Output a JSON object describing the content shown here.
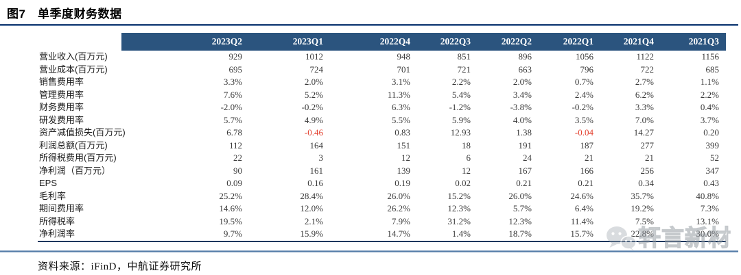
{
  "figure": {
    "title": "图7　单季度财务数据",
    "source": "资料来源：iFinD，中航证券研究所"
  },
  "watermark": {
    "icon": "wechat-icon",
    "text": "轩言新材"
  },
  "colors": {
    "header_bg": "#2B547E",
    "rule_dark": "#274A7C",
    "rule_light": "#43709F",
    "border_dark": "#17365D",
    "negative_red": "#E3402E"
  },
  "chart_data": {
    "type": "table",
    "title": "图7 单季度财务数据",
    "columns": [
      "",
      "2023Q2",
      "2023Q1",
      "2022Q4",
      "2022Q3",
      "2022Q2",
      "2022Q1",
      "2021Q4",
      "2021Q3"
    ],
    "rows": [
      {
        "label": "营业收入(百万元)",
        "values": [
          "929",
          "1012",
          "948",
          "851",
          "896",
          "1056",
          "1122",
          "1156"
        ]
      },
      {
        "label": "营业成本(百万元)",
        "values": [
          "695",
          "724",
          "701",
          "721",
          "663",
          "796",
          "722",
          "685"
        ]
      },
      {
        "label": "销售费用率",
        "values": [
          "3.3%",
          "2.0%",
          "3.1%",
          "2.2%",
          "2.0%",
          "0.7%",
          "2.7%",
          "1.1%"
        ]
      },
      {
        "label": "管理费用率",
        "values": [
          "7.6%",
          "5.2%",
          "11.3%",
          "5.4%",
          "3.4%",
          "2.4%",
          "6.2%",
          "2.2%"
        ]
      },
      {
        "label": "财务费用率",
        "values": [
          "-2.0%",
          "-0.2%",
          "6.3%",
          "-1.2%",
          "-3.8%",
          "-0.2%",
          "3.3%",
          "0.4%"
        ]
      },
      {
        "label": "研发费用率",
        "values": [
          "5.7%",
          "4.9%",
          "5.5%",
          "5.9%",
          "4.0%",
          "3.5%",
          "7.0%",
          "3.7%"
        ]
      },
      {
        "label": "资产减值损失(百万元)",
        "values": [
          "6.78",
          "-0.46",
          "0.83",
          "12.93",
          "1.38",
          "-0.04",
          "14.27",
          "0.20"
        ],
        "red_indices": [
          1,
          5
        ]
      },
      {
        "label": "利润总额(百万元)",
        "values": [
          "112",
          "164",
          "151",
          "18",
          "191",
          "187",
          "277",
          "399"
        ]
      },
      {
        "label": "所得税费用(百万元)",
        "values": [
          "22",
          "3",
          "12",
          "6",
          "24",
          "21",
          "21",
          "52"
        ]
      },
      {
        "label": "净利润（百万元）",
        "values": [
          "90",
          "161",
          "139",
          "12",
          "167",
          "166",
          "256",
          "347"
        ]
      },
      {
        "label": "EPS",
        "values": [
          "0.09",
          "0.16",
          "0.19",
          "0.02",
          "0.21",
          "0.21",
          "0.34",
          "0.43"
        ]
      },
      {
        "label": "毛利率",
        "values": [
          "25.2%",
          "28.4%",
          "26.0%",
          "15.2%",
          "26.0%",
          "24.6%",
          "35.7%",
          "40.8%"
        ]
      },
      {
        "label": "期间费用率",
        "values": [
          "14.6%",
          "12.0%",
          "26.2%",
          "12.3%",
          "5.7%",
          "6.4%",
          "19.2%",
          "7.3%"
        ]
      },
      {
        "label": "所得税率",
        "values": [
          "19.5%",
          "2.1%",
          "7.9%",
          "31.2%",
          "12.3%",
          "11.4%",
          "7.5%",
          "13.1%"
        ]
      },
      {
        "label": "净利润率",
        "values": [
          "9.7%",
          "15.9%",
          "14.7%",
          "1.4%",
          "18.7%",
          "15.7%",
          "22.8%",
          "30.0%"
        ]
      }
    ]
  }
}
